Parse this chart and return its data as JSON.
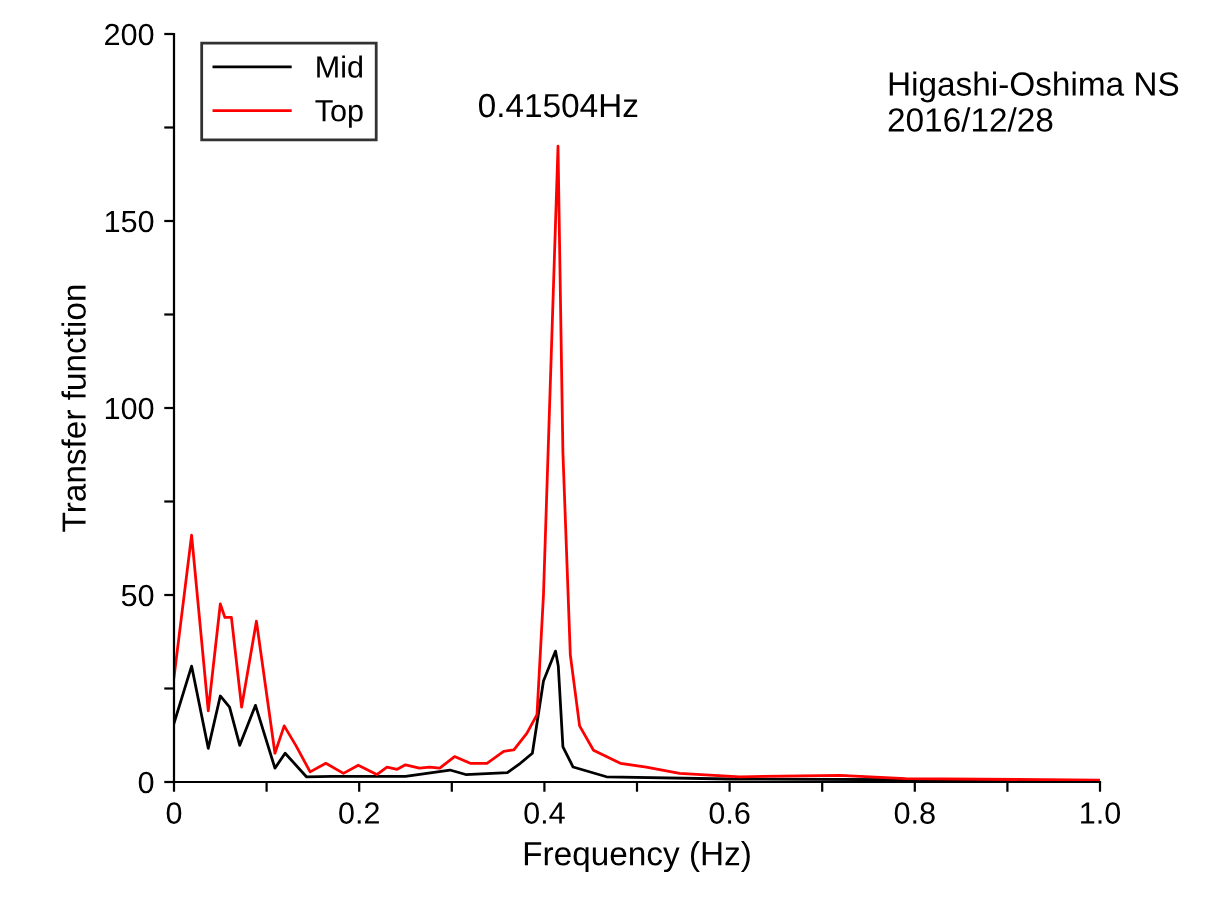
{
  "chart_data": {
    "type": "line",
    "xlabel": "Frequency (Hz)",
    "ylabel": "Transfer function",
    "annotations": [
      {
        "text": "0.41504Hz",
        "x": 0.415,
        "y": 170
      },
      "Higashi-Oshima NS\n2016/12/28"
    ],
    "xlim": [
      0,
      1
    ],
    "ylim": [
      0,
      200
    ],
    "xticks": [
      0,
      {
        "value": 0.1,
        "label": null
      },
      0.2,
      {
        "value": 0.3,
        "label": null
      },
      0.4,
      {
        "value": 0.5,
        "label": null
      },
      0.6,
      {
        "value": 0.7,
        "label": null
      },
      0.8,
      {
        "value": 0.9,
        "label": null
      },
      {
        "value": 1,
        "label": "1.0"
      }
    ],
    "yticks": [
      0,
      {
        "value": 25,
        "label": null
      },
      50,
      {
        "value": 75,
        "label": null
      },
      100,
      {
        "value": 125,
        "label": null
      },
      150,
      {
        "value": 175,
        "label": null
      },
      200
    ],
    "grid": false,
    "legend": "top left",
    "marker": "none",
    "line_style": "solid",
    "series": [
      {
        "name": "Mid",
        "color": "#000000",
        "x": [
          0,
          0.019,
          0.037,
          0.05,
          0.06,
          0.071,
          0.088,
          0.109,
          0.12,
          0.143,
          0.17,
          0.2,
          0.25,
          0.298,
          0.315,
          0.36,
          0.374,
          0.387,
          0.399,
          0.412,
          0.415,
          0.42,
          0.431,
          0.467,
          0.6,
          0.8,
          1.0
        ],
        "values": [
          15.7,
          31,
          9,
          23,
          20,
          9.8,
          20.5,
          3.7,
          7.7,
          1.4,
          1.5,
          1.5,
          1.5,
          3.2,
          2,
          2.5,
          5,
          7.7,
          27,
          35,
          31,
          9.4,
          4,
          1.4,
          0.8,
          0.6,
          0.3
        ]
      },
      {
        "name": "Top",
        "color": "#ff0000",
        "x": [
          0,
          0.019,
          0.037,
          0.05,
          0.055,
          0.062,
          0.073,
          0.089,
          0.109,
          0.119,
          0.132,
          0.147,
          0.164,
          0.183,
          0.199,
          0.219,
          0.23,
          0.241,
          0.25,
          0.265,
          0.276,
          0.287,
          0.303,
          0.32,
          0.338,
          0.356,
          0.367,
          0.381,
          0.392,
          0.399,
          0.4147,
          0.42,
          0.428,
          0.438,
          0.453,
          0.482,
          0.51,
          0.546,
          0.611,
          0.719,
          0.79,
          1.0
        ],
        "values": [
          28,
          66,
          19,
          47.6,
          44,
          44,
          20,
          43,
          7.7,
          15,
          9.6,
          2.7,
          5,
          2.3,
          4.5,
          2,
          4,
          3.4,
          4.6,
          3.7,
          4,
          3.7,
          6.8,
          5,
          5,
          8.2,
          8.6,
          13,
          18,
          50,
          170,
          88,
          34,
          15,
          8.5,
          5,
          4,
          2.3,
          1.4,
          1.8,
          0.9,
          0.5
        ]
      }
    ]
  }
}
